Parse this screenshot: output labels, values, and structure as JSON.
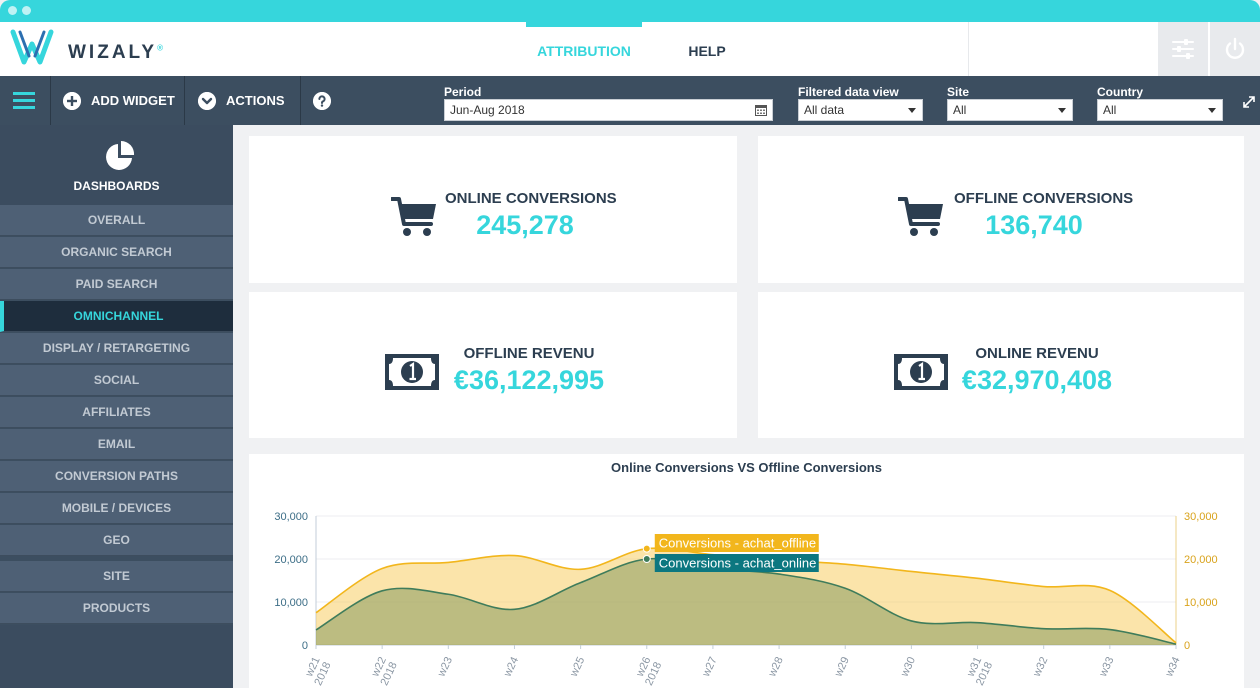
{
  "app": {
    "brand": "WIZALY",
    "registered": "®"
  },
  "nav": {
    "tabs": [
      {
        "label": "ATTRIBUTION"
      },
      {
        "label": "HELP"
      }
    ]
  },
  "toolbar": {
    "add_widget": "ADD WIDGET",
    "actions": "ACTIONS",
    "filters": {
      "period": {
        "label": "Period",
        "value": "Jun-Aug 2018"
      },
      "data_view": {
        "label": "Filtered data view",
        "value": "All data"
      },
      "site": {
        "label": "Site",
        "value": "All"
      },
      "country": {
        "label": "Country",
        "value": "All"
      }
    }
  },
  "sidebar": {
    "title": "DASHBOARDS",
    "items": [
      {
        "label": "OVERALL"
      },
      {
        "label": "ORGANIC SEARCH"
      },
      {
        "label": "PAID SEARCH"
      },
      {
        "label": "OMNICHANNEL",
        "active": true
      },
      {
        "label": "DISPLAY / RETARGETING"
      },
      {
        "label": "SOCIAL"
      },
      {
        "label": "AFFILIATES"
      },
      {
        "label": "EMAIL"
      },
      {
        "label": "CONVERSION PATHS"
      },
      {
        "label": "MOBILE / DEVICES"
      },
      {
        "label": "GEO"
      },
      {
        "label": "SITE"
      },
      {
        "label": "PRODUCTS"
      }
    ]
  },
  "kpis": {
    "online_conversions": {
      "label": "ONLINE CONVERSIONS",
      "value": "245,278"
    },
    "offline_conversions": {
      "label": "OFFLINE CONVERSIONS",
      "value": "136,740"
    },
    "offline_revenue": {
      "label": "OFFLINE REVENU",
      "value": "€36,122,995"
    },
    "online_revenue": {
      "label": "ONLINE REVENU",
      "value": "€32,970,408"
    }
  },
  "colors": {
    "accent": "#36d6dc",
    "dark": "#2c3e50",
    "offline": "#f2b61c",
    "online": "#3f7c5b",
    "tooltip_online": "#0c7780"
  },
  "chart_data": {
    "type": "area",
    "title": "Online Conversions VS Offline Conversions",
    "categories": [
      "w21\n2018",
      "w22\n2018",
      "w23",
      "w24",
      "w25",
      "w26\n2018",
      "w27",
      "w28",
      "w29",
      "w30",
      "w31\n2018",
      "w32",
      "w33",
      "w34"
    ],
    "series": [
      {
        "name": "Conversions - achat_offline",
        "color": "#f2b61c",
        "values": [
          7500,
          17800,
          19200,
          20800,
          17600,
          22400,
          21000,
          19800,
          18800,
          17100,
          15500,
          13600,
          12700,
          500
        ]
      },
      {
        "name": "Conversions - achat_online",
        "color": "#3f7c5b",
        "values": [
          3500,
          12600,
          11800,
          8300,
          14500,
          20000,
          17800,
          16500,
          13200,
          5600,
          5200,
          3800,
          3600,
          200
        ]
      }
    ],
    "ylim": [
      0,
      30000
    ],
    "yticks": [
      "0",
      "10,000",
      "20,000",
      "30,000"
    ],
    "yticks_right": [
      "0",
      "10,000",
      "20,000",
      "30,000"
    ],
    "tooltip_index": 5,
    "grid": true
  }
}
